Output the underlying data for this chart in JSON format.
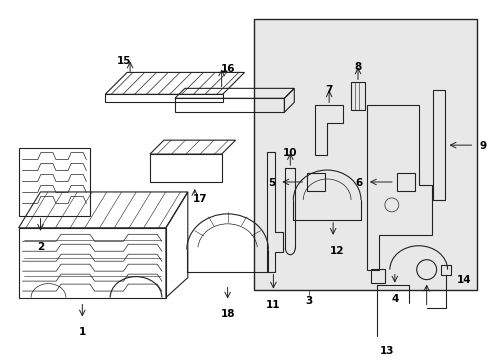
{
  "bg_color": "#ffffff",
  "panel_bg": "#e8e8e8",
  "line_color": "#222222",
  "fig_width": 4.89,
  "fig_height": 3.6,
  "dpi": 100
}
